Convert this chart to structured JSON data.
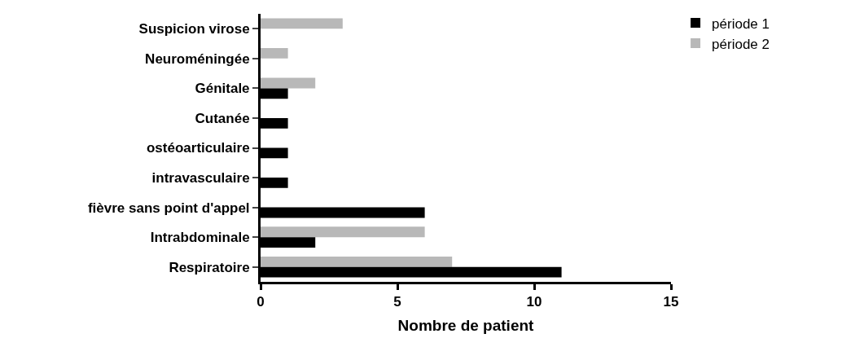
{
  "chart_data": {
    "type": "bar",
    "orientation": "horizontal",
    "xlabel": "Nombre de patient",
    "categories": [
      "Suspicion virose",
      "Neuroméningée",
      "Génitale",
      "Cutanée",
      "ostéoarticulaire",
      "intravasculaire",
      "fièvre sans point d'appel",
      "Intrabdominale",
      "Respiratoire"
    ],
    "series": [
      {
        "name": "période 1",
        "color": "#000000",
        "values": [
          0,
          0,
          1,
          1,
          1,
          1,
          6,
          2,
          11
        ]
      },
      {
        "name": "période 2",
        "color": "#b8b8b8",
        "values": [
          3,
          1,
          2,
          0,
          0,
          0,
          0,
          6,
          7
        ]
      }
    ],
    "xlim": [
      0,
      15
    ],
    "xticks": [
      0,
      5,
      10,
      15
    ],
    "grid": false,
    "legend": "top right"
  }
}
